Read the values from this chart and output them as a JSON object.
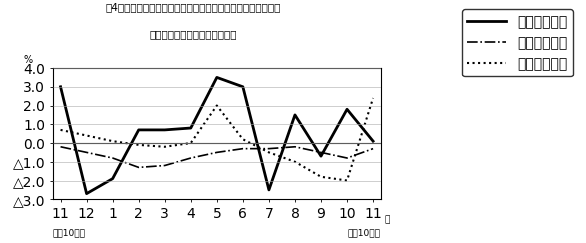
{
  "title_line1": "笥4図　　賃金、労働時間、常用雇用指数対前年同月比の推移",
  "title_line2": "（規樯５人以上　調査産業計）",
  "xlabel_right": "月",
  "ylabel": "%",
  "footnote_left": "平成10８年",
  "footnote_right": "平成10９年",
  "x_labels": [
    "11",
    "12",
    "1",
    "2",
    "3",
    "4",
    "5",
    "6",
    "7",
    "8",
    "9",
    "10",
    "11"
  ],
  "ylim": [
    -3.0,
    4.0
  ],
  "yticks": [
    -3.0,
    -2.0,
    -1.0,
    0.0,
    1.0,
    2.0,
    3.0,
    4.0
  ],
  "ytick_labels": [
    "△3.0",
    "△2.0",
    "△1.0",
    "0.0",
    "1.0",
    "2.0",
    "3.0",
    "4.0"
  ],
  "wage_label": "現金給与総額",
  "hours_label": "総実労働時間",
  "employment_label": "常用雇用指数",
  "wage_values": [
    3.0,
    -2.7,
    -1.9,
    0.7,
    0.7,
    0.8,
    3.5,
    3.0,
    -2.5,
    1.5,
    -0.7,
    1.8,
    0.1
  ],
  "hours_values": [
    -0.2,
    -0.5,
    -0.8,
    -1.3,
    -1.2,
    -0.8,
    -0.5,
    -0.3,
    -0.3,
    -0.2,
    -0.5,
    -0.8,
    -0.3
  ],
  "employment_values": [
    0.7,
    0.4,
    0.1,
    -0.1,
    -0.2,
    0.0,
    2.0,
    0.2,
    -0.5,
    -1.0,
    -1.8,
    -2.0,
    2.4
  ],
  "background_color": "#ffffff"
}
